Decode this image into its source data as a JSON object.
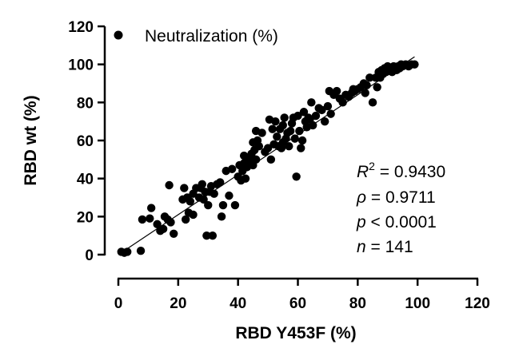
{
  "chart_data": {
    "type": "scatter",
    "xlabel": "RBD Y453F (%)",
    "ylabel": "RBD wt (%)",
    "xlim": [
      0,
      120
    ],
    "ylim": [
      0,
      120
    ],
    "x_ticks": [
      "0",
      "20",
      "40",
      "60",
      "80",
      "100",
      "120"
    ],
    "y_ticks": [
      "0",
      "20",
      "40",
      "60",
      "80",
      "100",
      "120"
    ],
    "grid": false,
    "legend": {
      "position": "top-left",
      "entries": [
        "Neutralization (%)"
      ]
    },
    "series": [
      {
        "name": "Neutralization (%)",
        "marker": "circle",
        "color": "#000000",
        "points": [
          [
            1,
            1.5
          ],
          [
            2,
            1
          ],
          [
            3,
            1.5
          ],
          [
            7.5,
            2
          ],
          [
            8,
            18.5
          ],
          [
            10.5,
            19
          ],
          [
            11,
            24.5
          ],
          [
            13,
            16
          ],
          [
            14,
            12.5
          ],
          [
            15,
            13.5
          ],
          [
            15.5,
            20
          ],
          [
            16.5,
            18.5
          ],
          [
            17,
            36.5
          ],
          [
            17.5,
            17
          ],
          [
            18.5,
            11
          ],
          [
            21.5,
            29
          ],
          [
            22.5,
            18.5
          ],
          [
            22,
            35
          ],
          [
            23,
            30
          ],
          [
            23.5,
            22
          ],
          [
            24,
            28
          ],
          [
            25,
            32
          ],
          [
            25,
            21
          ],
          [
            26,
            35
          ],
          [
            27,
            30
          ],
          [
            27.5,
            35
          ],
          [
            28,
            37
          ],
          [
            28.5,
            29
          ],
          [
            29,
            33
          ],
          [
            29.5,
            10
          ],
          [
            30,
            26
          ],
          [
            30.5,
            33
          ],
          [
            31,
            36
          ],
          [
            31.5,
            10
          ],
          [
            32,
            32
          ],
          [
            33,
            37
          ],
          [
            34,
            38
          ],
          [
            34.5,
            20
          ],
          [
            35,
            26
          ],
          [
            36,
            44
          ],
          [
            37,
            31
          ],
          [
            38,
            45
          ],
          [
            39,
            26
          ],
          [
            40,
            41
          ],
          [
            40.5,
            47
          ],
          [
            41,
            39
          ],
          [
            41.5,
            44
          ],
          [
            42,
            48
          ],
          [
            42,
            52
          ],
          [
            42.5,
            40
          ],
          [
            43,
            46
          ],
          [
            43.5,
            51
          ],
          [
            44,
            48
          ],
          [
            44.5,
            53
          ],
          [
            45,
            47
          ],
          [
            45,
            59
          ],
          [
            45.5,
            55
          ],
          [
            46,
            50
          ],
          [
            46.5,
            60
          ],
          [
            46,
            65
          ],
          [
            47,
            57
          ],
          [
            48,
            64
          ],
          [
            49,
            54
          ],
          [
            50,
            56
          ],
          [
            50.5,
            71
          ],
          [
            51,
            50
          ],
          [
            51.5,
            66
          ],
          [
            52,
            58
          ],
          [
            52.5,
            70
          ],
          [
            53,
            62
          ],
          [
            53.5,
            57
          ],
          [
            54,
            66
          ],
          [
            54.5,
            56
          ],
          [
            55,
            68
          ],
          [
            55,
            59
          ],
          [
            55.5,
            72
          ],
          [
            56,
            61
          ],
          [
            56.5,
            64
          ],
          [
            57,
            57
          ],
          [
            57.5,
            65
          ],
          [
            58,
            69
          ],
          [
            58.5,
            72
          ],
          [
            59,
            61
          ],
          [
            59.5,
            41
          ],
          [
            60,
            73
          ],
          [
            60.5,
            65
          ],
          [
            61,
            56
          ],
          [
            61.5,
            60
          ],
          [
            62,
            75
          ],
          [
            62.5,
            70
          ],
          [
            63,
            67
          ],
          [
            63.5,
            72
          ],
          [
            64,
            71
          ],
          [
            64.5,
            80
          ],
          [
            65,
            68
          ],
          [
            66,
            73
          ],
          [
            67,
            77
          ],
          [
            68,
            76
          ],
          [
            69,
            70
          ],
          [
            70,
            78
          ],
          [
            70.5,
            86
          ],
          [
            71,
            74
          ],
          [
            72,
            84
          ],
          [
            73,
            86
          ],
          [
            74,
            82
          ],
          [
            75,
            80
          ],
          [
            76,
            84
          ],
          [
            77,
            83
          ],
          [
            78,
            85
          ],
          [
            78.5,
            87
          ],
          [
            79,
            86
          ],
          [
            80,
            87
          ],
          [
            81,
            88
          ],
          [
            82,
            90
          ],
          [
            82.5,
            85
          ],
          [
            83,
            89
          ],
          [
            84,
            93
          ],
          [
            85,
            80
          ],
          [
            86,
            93
          ],
          [
            86.5,
            88
          ],
          [
            87,
            96
          ],
          [
            87.5,
            93
          ],
          [
            88,
            97
          ],
          [
            88.5,
            95
          ],
          [
            89,
            98
          ],
          [
            89.5,
            96
          ],
          [
            90,
            99
          ],
          [
            90.5,
            97
          ],
          [
            91,
            98
          ],
          [
            91.5,
            96
          ],
          [
            92,
            99
          ],
          [
            92.5,
            98
          ],
          [
            93,
            97
          ],
          [
            93.5,
            99
          ],
          [
            94,
            98
          ],
          [
            94.5,
            100
          ],
          [
            95,
            99
          ],
          [
            96,
            100
          ],
          [
            97,
            99
          ],
          [
            98,
            100
          ],
          [
            99,
            100
          ]
        ]
      }
    ],
    "fit_line": {
      "x": [
        0,
        99
      ],
      "y": [
        0,
        104
      ]
    },
    "annotations": {
      "r2": {
        "label": "R",
        "sup": "2",
        "value": " = 0.9430"
      },
      "rho": {
        "label": "ρ",
        "value": " = 0.9711"
      },
      "p": {
        "label": "p",
        "value": " < 0.0001"
      },
      "n": {
        "label": "n",
        "value": " = 141"
      }
    }
  }
}
